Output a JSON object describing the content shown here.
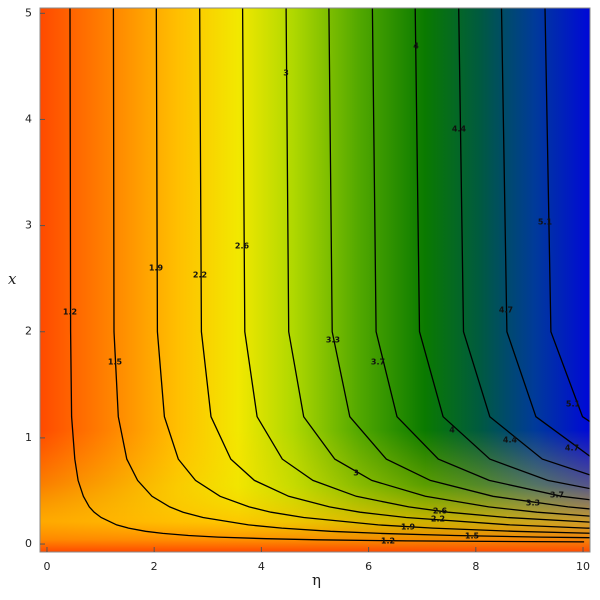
{
  "chart_data": {
    "type": "contour",
    "xlabel": "η",
    "ylabel": "x",
    "xlim": [
      -0.13,
      10.13
    ],
    "ylim": [
      -0.075,
      5.05
    ],
    "xticks": [
      0,
      2,
      4,
      6,
      8,
      10
    ],
    "yticks": [
      0,
      1,
      2,
      3,
      4,
      5
    ],
    "contours": [
      {
        "level": 1.2,
        "eta": [
          0.43,
          0.44,
          0.46,
          0.52,
          0.58,
          0.68,
          0.79,
          0.88,
          1.01,
          1.3,
          1.52,
          1.84,
          2.16,
          2.64,
          3.19,
          4.09,
          5.05,
          6.71,
          10.02
        ],
        "x": [
          5.05,
          2,
          1.2,
          0.8,
          0.6,
          0.45,
          0.35,
          0.3,
          0.25,
          0.18,
          0.15,
          0.12,
          0.1,
          0.08,
          0.065,
          0.05,
          0.04,
          0.03,
          0.02
        ]
      },
      {
        "level": 1.5,
        "eta": [
          1.24,
          1.25,
          1.33,
          1.49,
          1.69,
          1.96,
          2.29,
          2.54,
          2.91,
          3.76,
          4.38,
          5.29,
          6.22,
          7.6,
          9.21,
          11.8
        ],
        "x": [
          5.05,
          2,
          1.2,
          0.8,
          0.6,
          0.45,
          0.35,
          0.3,
          0.25,
          0.18,
          0.15,
          0.12,
          0.1,
          0.08,
          0.065,
          0.05
        ]
      },
      {
        "level": 1.9,
        "eta": [
          2.04,
          2.06,
          2.19,
          2.45,
          2.77,
          3.23,
          3.77,
          4.18,
          4.79,
          6.18,
          7.2,
          8.71,
          10.24
        ],
        "x": [
          5.05,
          2,
          1.2,
          0.8,
          0.6,
          0.45,
          0.35,
          0.3,
          0.25,
          0.18,
          0.15,
          0.12,
          0.1
        ]
      },
      {
        "level": 2.2,
        "eta": [
          2.85,
          2.88,
          3.06,
          3.43,
          3.87,
          4.51,
          5.27,
          5.84,
          6.7,
          8.64,
          10.06,
          12.17
        ],
        "x": [
          5.05,
          2,
          1.2,
          0.8,
          0.6,
          0.45,
          0.35,
          0.3,
          0.25,
          0.18,
          0.15,
          0.12
        ]
      },
      {
        "level": 2.6,
        "eta": [
          3.65,
          3.69,
          3.92,
          4.39,
          4.96,
          5.77,
          6.75,
          7.48,
          8.58,
          11.06
        ],
        "x": [
          5.05,
          2,
          1.2,
          0.8,
          0.6,
          0.45,
          0.35,
          0.3,
          0.25,
          0.18
        ]
      },
      {
        "level": 3.0,
        "eta": [
          4.46,
          4.51,
          4.79,
          5.37,
          6.06,
          7.06,
          8.24,
          9.14,
          10.48
        ],
        "x": [
          5.05,
          2,
          1.2,
          0.8,
          0.6,
          0.45,
          0.35,
          0.3,
          0.25
        ]
      },
      {
        "level": 3.3,
        "eta": [
          5.26,
          5.32,
          5.65,
          6.33,
          7.15,
          8.32,
          9.72,
          10.78
        ],
        "x": [
          5.05,
          2,
          1.2,
          0.8,
          0.6,
          0.45,
          0.35,
          0.3
        ]
      },
      {
        "level": 3.7,
        "eta": [
          6.07,
          6.14,
          6.53,
          7.3,
          8.25,
          9.6,
          11.22
        ],
        "x": [
          5.05,
          2,
          1.2,
          0.8,
          0.6,
          0.45,
          0.35
        ]
      },
      {
        "level": 4.0,
        "eta": [
          6.87,
          6.95,
          7.39,
          8.26,
          9.34,
          10.87
        ],
        "x": [
          5.05,
          2,
          1.2,
          0.8,
          0.6,
          0.45
        ]
      },
      {
        "level": 4.4,
        "eta": [
          7.68,
          7.77,
          8.26,
          9.24,
          10.44
        ],
        "x": [
          5.05,
          2,
          1.2,
          0.8,
          0.6
        ]
      },
      {
        "level": 4.7,
        "eta": [
          8.48,
          8.58,
          9.12,
          10.2
        ],
        "x": [
          5.05,
          2,
          1.2,
          0.8
        ]
      },
      {
        "level": 5.1,
        "eta": [
          9.29,
          9.4,
          9.99,
          11.18
        ],
        "x": [
          5.05,
          2,
          1.2,
          0.8
        ]
      }
    ]
  }
}
